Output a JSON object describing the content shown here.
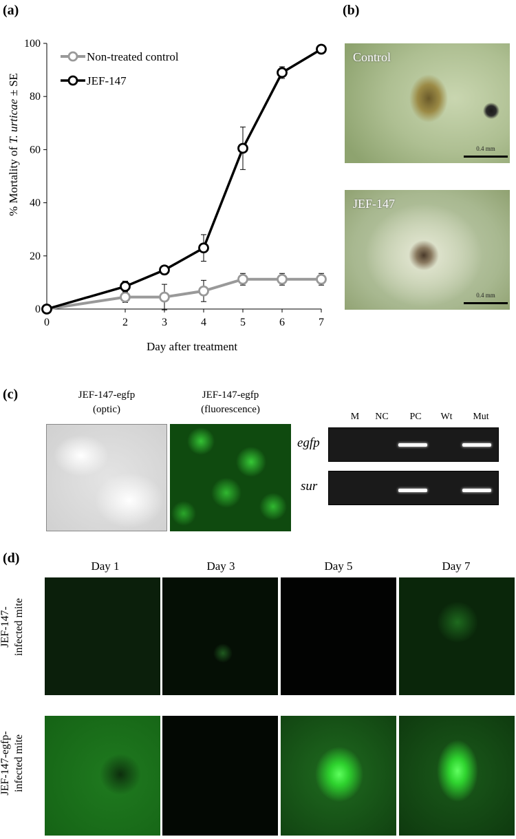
{
  "panels": {
    "a": "(a)",
    "b": "(b)",
    "c": "(c)",
    "d": "(d)"
  },
  "chart_data": {
    "type": "line",
    "xlabel": "Day after treatment",
    "ylabel_pre": "% Mortality of ",
    "ylabel_ital": "T. urticae",
    "ylabel_post": " ± SE",
    "x": [
      0,
      2,
      3,
      4,
      5,
      6,
      7
    ],
    "xticks": [
      "0",
      "2",
      "3",
      "4",
      "5",
      "6",
      "7"
    ],
    "xlim": [
      0,
      7
    ],
    "ylim": [
      0,
      100
    ],
    "yticks": [
      "0",
      "20",
      "40",
      "60",
      "80",
      "100"
    ],
    "series": [
      {
        "name": "Non-treated control",
        "color": "#999999",
        "values": [
          0,
          4.5,
          4.5,
          6.8,
          11.2,
          11.2,
          11.2
        ],
        "se": [
          0,
          2.0,
          4.8,
          4.0,
          2.2,
          2.2,
          2.2
        ]
      },
      {
        "name": "JEF-147",
        "color": "#000000",
        "values": [
          0,
          8.5,
          14.7,
          23.0,
          60.5,
          89.0,
          97.8
        ],
        "se": [
          0,
          2.0,
          1.2,
          5.0,
          8.0,
          2.2,
          1.0
        ]
      }
    ],
    "legend": "top-left"
  },
  "panel_b": {
    "top_label": "Control",
    "bottom_label": "JEF-147",
    "scale_text": "0.4 mm"
  },
  "panel_c": {
    "optic_caption_1": "JEF-147-egfp",
    "optic_caption_2": "(optic)",
    "fluor_caption_1": "JEF-147-egfp",
    "fluor_caption_2": "(fluorescence)",
    "lanes": [
      "M",
      "NC",
      "PC",
      "Wt",
      "Mut"
    ],
    "genes": [
      "egfp",
      "sur"
    ]
  },
  "panel_d": {
    "days": [
      "Day 1",
      "Day 3",
      "Day 5",
      "Day 7"
    ],
    "row1_line1": "JEF-147-",
    "row1_line2": "infected mite",
    "row2_line1": "JEF-147-egfp-",
    "row2_line2": "infected mite"
  }
}
